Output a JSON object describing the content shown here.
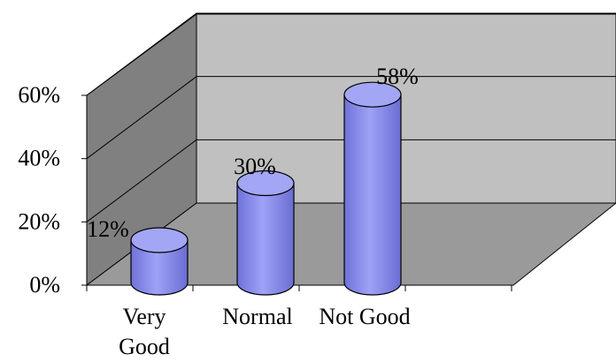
{
  "chart_data": {
    "type": "bar",
    "style": "3d-cylinder",
    "categories": [
      "Very Good",
      "Normal",
      "Not Good"
    ],
    "category_labels": [
      [
        "Very",
        "Good"
      ],
      [
        "Normal"
      ],
      [
        "Not Good"
      ]
    ],
    "values": [
      12,
      30,
      58
    ],
    "data_labels": [
      "12%",
      "30%",
      "58%"
    ],
    "ylim": [
      0,
      60
    ],
    "yticks": [
      0,
      20,
      40,
      60
    ],
    "ytick_labels": [
      "0%",
      "20%",
      "40%",
      "60%"
    ],
    "grid": true,
    "legend": "none",
    "colors": {
      "bar_fill": "#8c8ff0",
      "bar_top": "#a3a6f5",
      "back_wall": "#c0c0c0",
      "side_wall": "#808080",
      "floor": "#9a9a9a"
    }
  }
}
